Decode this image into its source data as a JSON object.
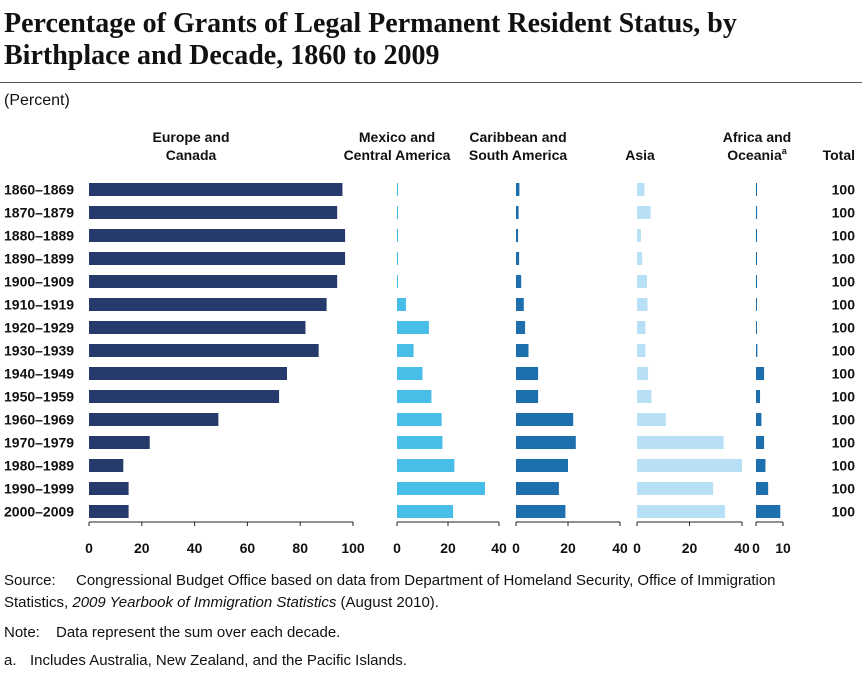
{
  "title": "Percentage of Grants of Legal Permanent Resident Status, by Birthplace and Decade, 1860 to 2009",
  "unit_label": "(Percent)",
  "colors": {
    "europe": "#263a6b",
    "mexico": "#48bde8",
    "caribbean": "#1e6fad",
    "asia": "#b7e0f6",
    "africa": "#1e6fad"
  },
  "chart_data": {
    "type": "bar",
    "orientation": "horizontal",
    "categories": [
      "1860–1869",
      "1870–1879",
      "1880–1889",
      "1890–1899",
      "1900–1909",
      "1910–1919",
      "1920–1929",
      "1930–1939",
      "1940–1949",
      "1950–1959",
      "1960–1969",
      "1970–1979",
      "1980–1989",
      "1990–1999",
      "2000–2009"
    ],
    "series": [
      {
        "name": "Europe and Canada",
        "color_key": "europe",
        "xlim": [
          0,
          100
        ],
        "ticks": [
          "0",
          "20",
          "40",
          "60",
          "80",
          "100"
        ],
        "values": [
          96,
          94,
          97,
          97,
          94,
          90,
          82,
          87,
          75,
          72,
          49,
          23,
          13,
          15,
          15
        ]
      },
      {
        "name": "Mexico and Central America",
        "color_key": "mexico",
        "xlim": [
          0,
          40
        ],
        "ticks": [
          "0",
          "20",
          "40"
        ],
        "values": [
          0.3,
          0.3,
          0.2,
          0.2,
          0.4,
          3.5,
          12.5,
          6.5,
          10,
          13.5,
          17.5,
          17.8,
          22.5,
          34.5,
          22
        ]
      },
      {
        "name": "Caribbean and South America",
        "color_key": "caribbean",
        "xlim": [
          0,
          40
        ],
        "ticks": [
          "0",
          "20",
          "40"
        ],
        "values": [
          1.3,
          1,
          0.8,
          1.2,
          2,
          3,
          3.5,
          4.8,
          8.5,
          8.5,
          22,
          23,
          20,
          16.5,
          19
        ]
      },
      {
        "name": "Asia",
        "color_key": "asia",
        "xlim": [
          0,
          40
        ],
        "ticks": [
          "0",
          "20",
          "40"
        ],
        "values": [
          2.8,
          5.2,
          1.5,
          2,
          3.8,
          4,
          3.2,
          3.2,
          4.2,
          5.5,
          11,
          33,
          40,
          29,
          33.5
        ]
      },
      {
        "name": "Africa and Oceania",
        "name_superscript": "a",
        "color_key": "africa",
        "xlim": [
          0,
          10
        ],
        "ticks": [
          "0",
          "10"
        ],
        "values": [
          0.3,
          0.4,
          0.3,
          0.3,
          0.3,
          0.3,
          0.3,
          0.5,
          3,
          1.5,
          2,
          3,
          3.5,
          4.5,
          9
        ]
      }
    ],
    "total": {
      "label": "Total",
      "values": [
        "100",
        "100",
        "100",
        "100",
        "100",
        "100",
        "100",
        "100",
        "100",
        "100",
        "100",
        "100",
        "100",
        "100",
        "100"
      ]
    }
  },
  "notes": {
    "source_label": "Source:",
    "source_line1": "Congressional Budget Office based on data from Department of Homeland Security, Office of Immigration",
    "source_line2_prefix": "Statistics, ",
    "source_line2_italic": "2009 Yearbook of Immigration Statistics",
    "source_line2_suffix": " (August 2010).",
    "note_label": "Note:",
    "note_text": "Data represent the sum over each decade.",
    "footnote_label": "a.",
    "footnote_text": "Includes Australia, New Zealand, and the Pacific Islands."
  }
}
